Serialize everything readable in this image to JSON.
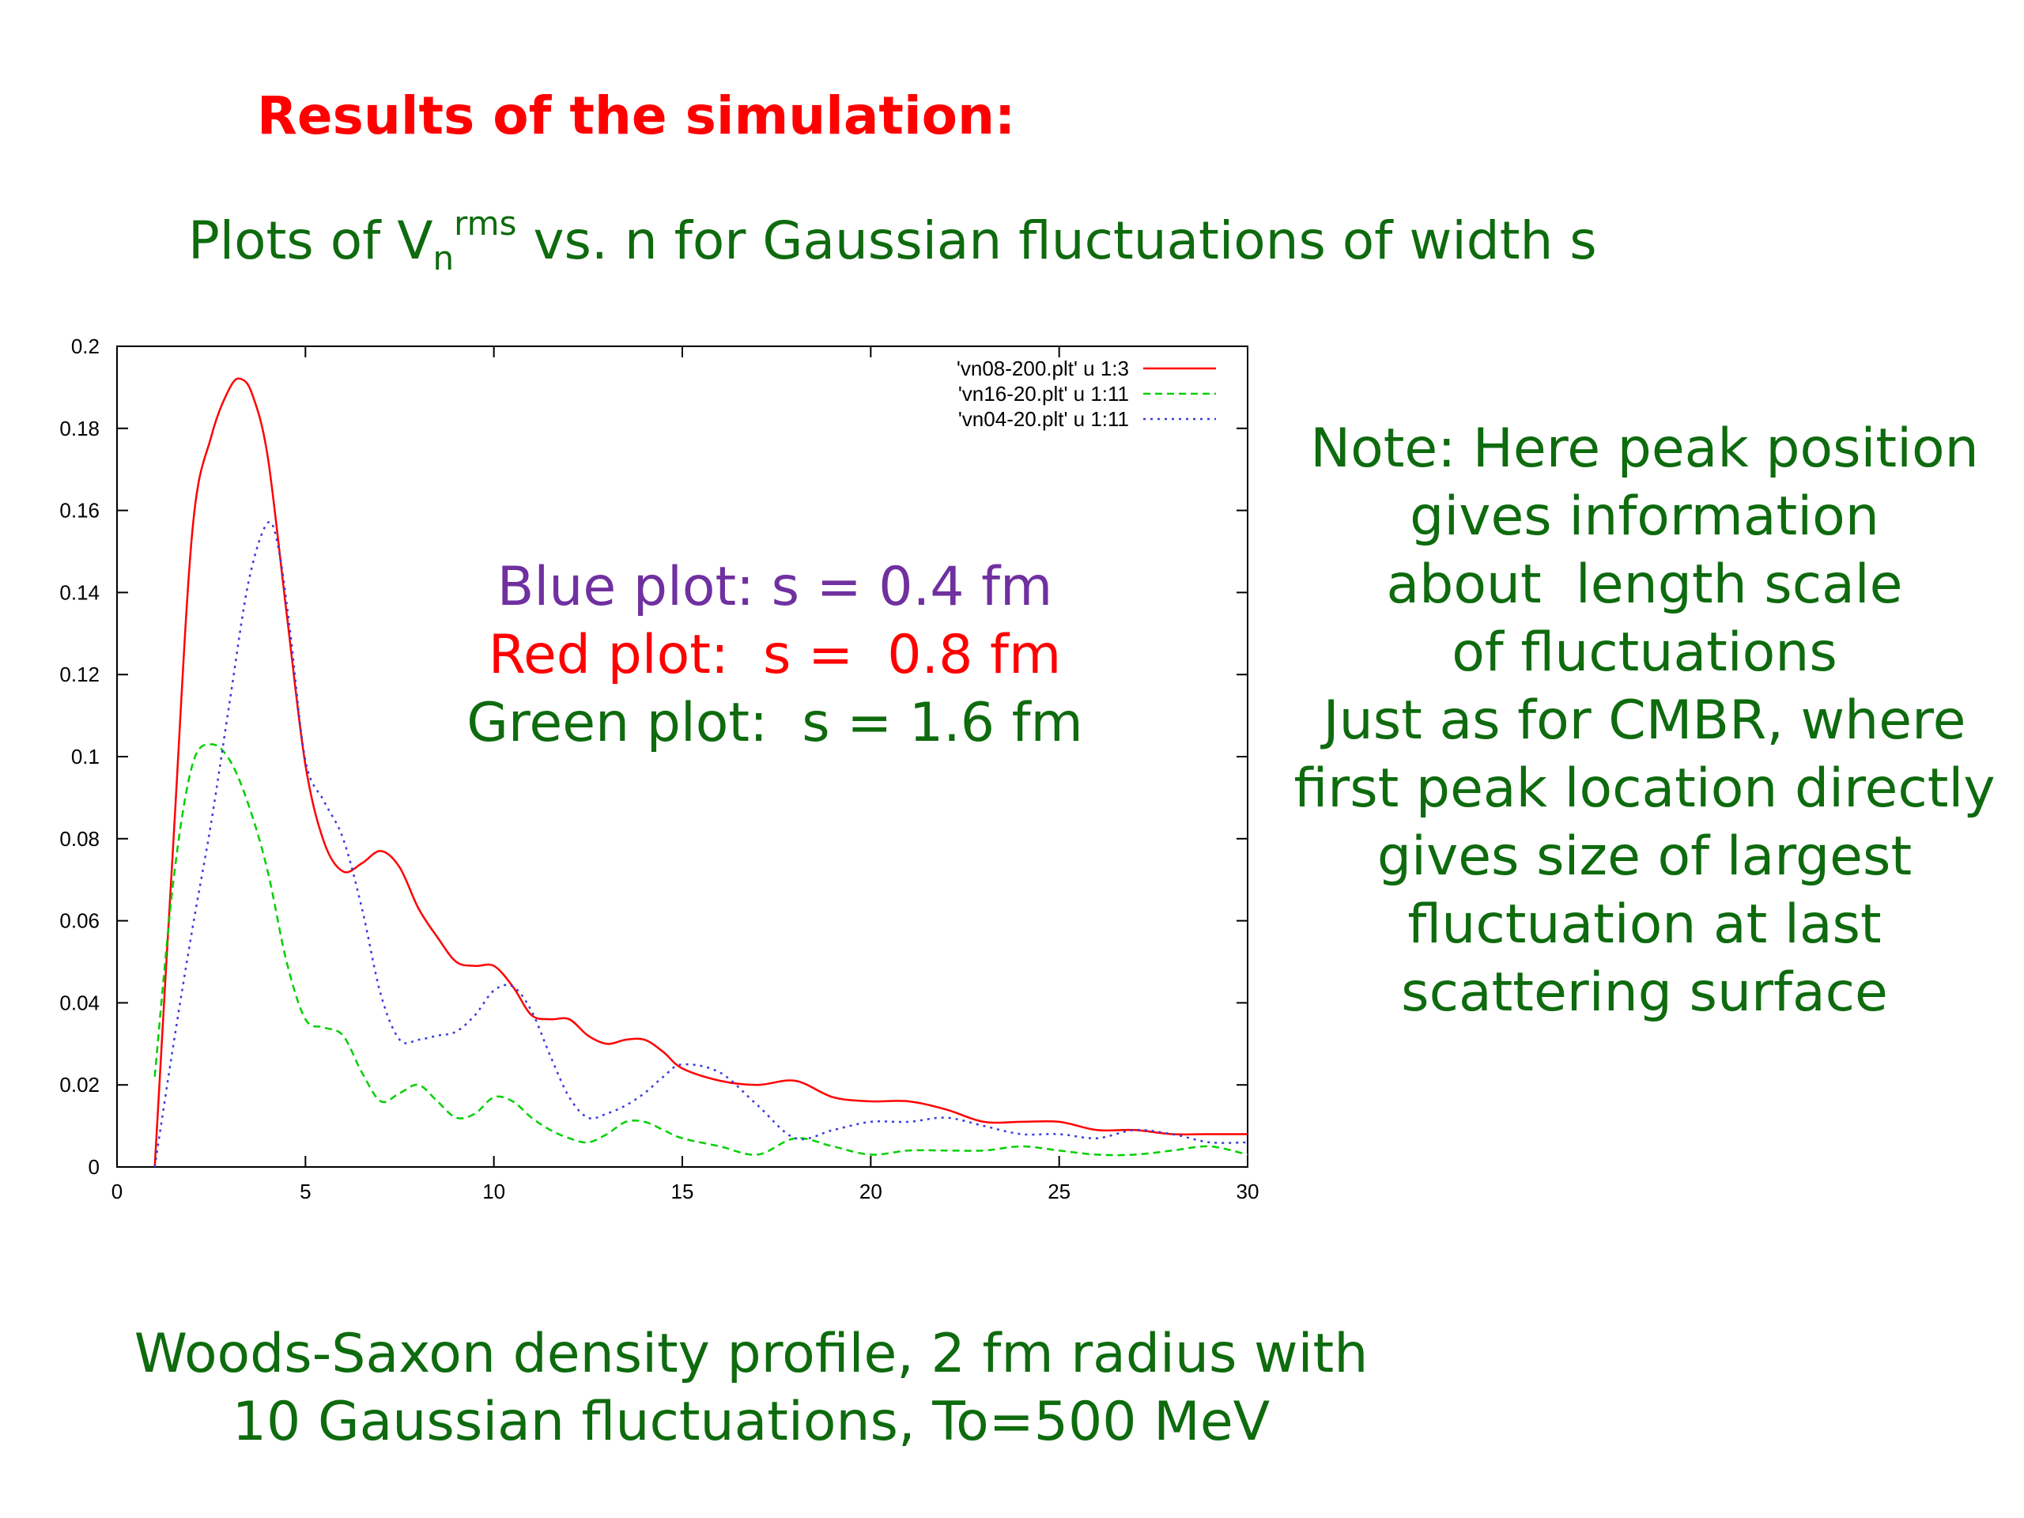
{
  "slide": {
    "title": "Results of the simulation:",
    "subtitle_prefix": "Plots of V",
    "subtitle_sub": "n",
    "subtitle_sup": "rms",
    "subtitle_suffix": " vs. n for Gaussian fluctuations of width s"
  },
  "overlay": {
    "blue": "Blue plot: s = 0.4 fm",
    "red": "Red plot:  s =  0.8 fm",
    "green": "Green plot:  s = 1.6 fm",
    "blue_color": "#7030a0",
    "red_color": "#ff0000",
    "green_color": "#0e6b0e"
  },
  "note": {
    "lines": [
      "Note: Here peak position",
      "gives information",
      "about  length scale",
      "of fluctuations",
      "",
      "Just as for CMBR, where",
      "first peak location directly",
      "gives size of largest",
      "fluctuation at last",
      "scattering surface"
    ]
  },
  "footer": {
    "line1": "Woods-Saxon density profile, 2 fm radius with",
    "line2": "10 Gaussian fluctuations, To=500 MeV"
  },
  "chart_data": {
    "type": "line",
    "xlim": [
      0,
      30
    ],
    "ylim": [
      0,
      0.2
    ],
    "xticks": [
      "0",
      "5",
      "10",
      "15",
      "20",
      "25",
      "30"
    ],
    "yticks": [
      "0",
      "0.02",
      "0.04",
      "0.06",
      "0.08",
      "0.1",
      "0.12",
      "0.14",
      "0.16",
      "0.18",
      "0.2"
    ],
    "grid": false,
    "legend_position": "top-right",
    "series": [
      {
        "name": "'vn08-200.plt'  u 1:3",
        "color": "#ff0000",
        "dash": "solid",
        "x": [
          1,
          1.5,
          2,
          2.5,
          3,
          3.3,
          3.6,
          4,
          4.5,
          5,
          5.5,
          6,
          6.5,
          7,
          7.5,
          8,
          8.5,
          9,
          9.5,
          10,
          10.5,
          11,
          11.5,
          12,
          12.5,
          13,
          13.5,
          14,
          14.5,
          15,
          16,
          17,
          18,
          19,
          20,
          21,
          22,
          23,
          24,
          25,
          26,
          27,
          28,
          29,
          30
        ],
        "y": [
          0.0,
          0.08,
          0.155,
          0.178,
          0.19,
          0.192,
          0.188,
          0.173,
          0.135,
          0.098,
          0.079,
          0.072,
          0.074,
          0.077,
          0.073,
          0.063,
          0.056,
          0.05,
          0.049,
          0.049,
          0.044,
          0.037,
          0.036,
          0.036,
          0.032,
          0.03,
          0.031,
          0.031,
          0.028,
          0.024,
          0.021,
          0.02,
          0.021,
          0.017,
          0.016,
          0.016,
          0.014,
          0.011,
          0.011,
          0.011,
          0.009,
          0.009,
          0.008,
          0.008,
          0.008
        ]
      },
      {
        "name": "'vn16-20.plt'  u 1:11",
        "color": "#00d000",
        "dash": "dashed",
        "x": [
          1,
          1.5,
          2,
          2.5,
          3,
          3.5,
          4,
          4.5,
          5,
          5.5,
          6,
          6.5,
          7,
          7.5,
          8,
          8.5,
          9,
          9.5,
          10,
          10.5,
          11,
          11.5,
          12,
          12.5,
          13,
          13.5,
          14,
          14.5,
          15,
          16,
          17,
          18,
          19,
          20,
          21,
          22,
          23,
          24,
          25,
          26,
          27,
          28,
          29,
          30
        ],
        "y": [
          0.022,
          0.07,
          0.098,
          0.103,
          0.099,
          0.088,
          0.072,
          0.05,
          0.036,
          0.034,
          0.032,
          0.023,
          0.016,
          0.018,
          0.02,
          0.016,
          0.012,
          0.013,
          0.017,
          0.016,
          0.012,
          0.009,
          0.007,
          0.006,
          0.008,
          0.011,
          0.011,
          0.009,
          0.007,
          0.005,
          0.003,
          0.007,
          0.005,
          0.003,
          0.004,
          0.004,
          0.004,
          0.005,
          0.004,
          0.003,
          0.003,
          0.004,
          0.005,
          0.003
        ]
      },
      {
        "name": "'vn04-20.plt'  u 1:11",
        "color": "#3a3ae0",
        "dash": "dotted",
        "x": [
          1,
          1.5,
          2,
          2.5,
          3,
          3.5,
          4,
          4.3,
          4.6,
          5,
          5.5,
          6,
          6.5,
          7,
          7.5,
          8,
          8.5,
          9,
          9.5,
          10,
          10.5,
          11,
          11.5,
          12,
          12.5,
          13,
          13.5,
          14,
          14.5,
          15,
          16,
          17,
          18,
          19,
          20,
          21,
          22,
          23,
          24,
          25,
          26,
          27,
          28,
          29,
          30
        ],
        "y": [
          0.0,
          0.03,
          0.058,
          0.084,
          0.114,
          0.143,
          0.157,
          0.15,
          0.13,
          0.099,
          0.089,
          0.08,
          0.063,
          0.042,
          0.031,
          0.031,
          0.032,
          0.033,
          0.037,
          0.043,
          0.044,
          0.038,
          0.027,
          0.017,
          0.012,
          0.013,
          0.015,
          0.018,
          0.022,
          0.025,
          0.023,
          0.015,
          0.007,
          0.009,
          0.011,
          0.011,
          0.012,
          0.01,
          0.008,
          0.008,
          0.007,
          0.009,
          0.008,
          0.006,
          0.006
        ]
      }
    ]
  }
}
